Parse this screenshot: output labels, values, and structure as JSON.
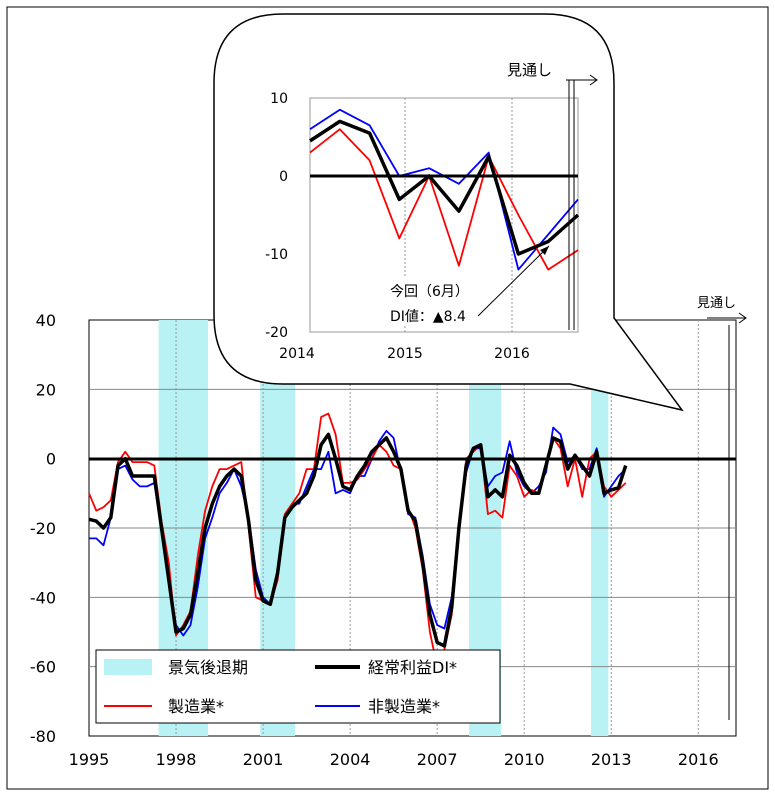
{
  "chart_data": [
    {
      "type": "line",
      "ylim": [
        -80,
        40
      ],
      "yticks": [
        40,
        20,
        0,
        -20,
        -40,
        -60,
        -80
      ],
      "xlim": [
        1995,
        2017.3
      ],
      "xticks": [
        1995,
        1998,
        2001,
        2004,
        2007,
        2010,
        2013,
        2016
      ],
      "forecast_label": "見通し",
      "recessions": [
        [
          1997.4,
          1999.1
        ],
        [
          2000.9,
          2002.1
        ],
        [
          2008.1,
          2009.2
        ],
        [
          2012.3,
          2012.9
        ]
      ],
      "legend": {
        "recession": "景気後退期",
        "total": "経常利益DI*",
        "manufacturing": "製造業*",
        "nonmanufacturing": "非製造業*"
      },
      "series": [
        {
          "key": "total",
          "name": "経常利益DI*",
          "color": "#000000",
          "points": [
            [
              1995,
              -17.5
            ],
            [
              1995.25,
              -18
            ],
            [
              1995.5,
              -20
            ],
            [
              1995.75,
              -17
            ],
            [
              1996,
              -2
            ],
            [
              1996.25,
              0
            ],
            [
              1996.5,
              -5
            ],
            [
              1996.75,
              -5
            ],
            [
              1997,
              -5
            ],
            [
              1997.25,
              -5
            ],
            [
              1997.5,
              -20
            ],
            [
              1997.75,
              -35
            ],
            [
              1998,
              -50
            ],
            [
              1998.25,
              -49
            ],
            [
              1998.5,
              -45
            ],
            [
              1998.75,
              -33
            ],
            [
              1999,
              -20
            ],
            [
              1999.25,
              -13
            ],
            [
              1999.5,
              -8
            ],
            [
              1999.75,
              -5
            ],
            [
              2000,
              -3
            ],
            [
              2000.25,
              -5
            ],
            [
              2000.5,
              -18
            ],
            [
              2000.75,
              -35
            ],
            [
              2001,
              -41
            ],
            [
              2001.25,
              -42
            ],
            [
              2001.5,
              -33
            ],
            [
              2001.75,
              -17
            ],
            [
              2002,
              -14
            ],
            [
              2002.25,
              -12
            ],
            [
              2002.5,
              -10
            ],
            [
              2002.75,
              -5
            ],
            [
              2003,
              4
            ],
            [
              2003.25,
              7
            ],
            [
              2003.5,
              0
            ],
            [
              2003.75,
              -8
            ],
            [
              2004,
              -9
            ],
            [
              2004.25,
              -5
            ],
            [
              2004.5,
              -2
            ],
            [
              2004.75,
              2
            ],
            [
              2005,
              4
            ],
            [
              2005.25,
              6
            ],
            [
              2005.5,
              2
            ],
            [
              2005.75,
              -3
            ],
            [
              2006,
              -15
            ],
            [
              2006.25,
              -18
            ],
            [
              2006.5,
              -30
            ],
            [
              2006.75,
              -45
            ],
            [
              2007,
              -53
            ],
            [
              2007.25,
              -54
            ],
            [
              2007.5,
              -43
            ],
            [
              2007.75,
              -20
            ],
            [
              2008,
              -2
            ],
            [
              2008.25,
              3
            ],
            [
              2008.5,
              4
            ],
            [
              2008.75,
              -11
            ],
            [
              2009,
              -9
            ],
            [
              2009.25,
              -11
            ],
            [
              2009.5,
              1
            ],
            [
              2009.75,
              -2
            ],
            [
              2010,
              -7
            ],
            [
              2010.25,
              -10
            ],
            [
              2010.5,
              -10
            ],
            [
              2010.75,
              -2
            ],
            [
              2011,
              6
            ],
            [
              2011.25,
              5
            ],
            [
              2011.5,
              -3
            ],
            [
              2011.75,
              1
            ],
            [
              2012,
              -2
            ],
            [
              2012.25,
              -5
            ],
            [
              2012.5,
              2
            ],
            [
              2012.75,
              -10
            ],
            [
              2013,
              -9
            ],
            [
              2013.25,
              -8.4
            ],
            [
              2013.5,
              -2
            ]
          ]
        },
        {
          "key": "manufacturing",
          "name": "製造業*",
          "color": "#ff0000",
          "points": [
            [
              1995,
              -10
            ],
            [
              1995.25,
              -15
            ],
            [
              1995.5,
              -14
            ],
            [
              1995.75,
              -12
            ],
            [
              1996,
              -1
            ],
            [
              1996.25,
              2
            ],
            [
              1996.5,
              -1
            ],
            [
              1996.75,
              -1
            ],
            [
              1997,
              -1
            ],
            [
              1997.25,
              -2
            ],
            [
              1997.5,
              -18
            ],
            [
              1997.75,
              -30
            ],
            [
              1998,
              -51
            ],
            [
              1998.25,
              -48
            ],
            [
              1998.5,
              -44
            ],
            [
              1998.75,
              -28
            ],
            [
              1999,
              -15
            ],
            [
              1999.25,
              -8
            ],
            [
              1999.5,
              -3
            ],
            [
              1999.75,
              -3
            ],
            [
              2000,
              -2
            ],
            [
              2000.25,
              -1
            ],
            [
              2000.5,
              -20
            ],
            [
              2000.75,
              -40
            ],
            [
              2001,
              -41
            ],
            [
              2001.25,
              -42
            ],
            [
              2001.5,
              -35
            ],
            [
              2001.75,
              -16
            ],
            [
              2002,
              -13
            ],
            [
              2002.25,
              -10
            ],
            [
              2002.5,
              -3
            ],
            [
              2002.75,
              -3
            ],
            [
              2003,
              12
            ],
            [
              2003.25,
              13
            ],
            [
              2003.5,
              7
            ],
            [
              2003.75,
              -7
            ],
            [
              2004,
              -7
            ],
            [
              2004.25,
              -6
            ],
            [
              2004.5,
              -3
            ],
            [
              2004.75,
              0
            ],
            [
              2005,
              4
            ],
            [
              2005.25,
              2
            ],
            [
              2005.5,
              -2
            ],
            [
              2005.75,
              -3
            ],
            [
              2006,
              -14
            ],
            [
              2006.25,
              -20
            ],
            [
              2006.5,
              -32
            ],
            [
              2006.75,
              -50
            ],
            [
              2007,
              -60
            ],
            [
              2007.25,
              -55
            ],
            [
              2007.5,
              -45
            ],
            [
              2007.75,
              -20
            ],
            [
              2008,
              0
            ],
            [
              2008.25,
              2
            ],
            [
              2008.5,
              4
            ],
            [
              2008.75,
              -16
            ],
            [
              2009,
              -15
            ],
            [
              2009.25,
              -17
            ],
            [
              2009.5,
              -2
            ],
            [
              2009.75,
              -5
            ],
            [
              2010,
              -11
            ],
            [
              2010.25,
              -9
            ],
            [
              2010.5,
              -10
            ],
            [
              2010.75,
              -1
            ],
            [
              2011,
              6
            ],
            [
              2011.25,
              3
            ],
            [
              2011.5,
              -8
            ],
            [
              2011.75,
              0
            ],
            [
              2012,
              -11
            ],
            [
              2012.25,
              0
            ],
            [
              2012.5,
              2
            ],
            [
              2012.75,
              -8
            ],
            [
              2013,
              -11
            ],
            [
              2013.25,
              -9
            ],
            [
              2013.5,
              -7
            ]
          ]
        },
        {
          "key": "nonmanufacturing",
          "name": "非製造業*",
          "color": "#0000ff",
          "points": [
            [
              1995,
              -23
            ],
            [
              1995.25,
              -23
            ],
            [
              1995.5,
              -25
            ],
            [
              1995.75,
              -17
            ],
            [
              1996,
              -3
            ],
            [
              1996.25,
              -2
            ],
            [
              1996.5,
              -6
            ],
            [
              1996.75,
              -8
            ],
            [
              1997,
              -8
            ],
            [
              1997.25,
              -7
            ],
            [
              1997.5,
              -20
            ],
            [
              1997.75,
              -35
            ],
            [
              1998,
              -48
            ],
            [
              1998.25,
              -51
            ],
            [
              1998.5,
              -48
            ],
            [
              1998.75,
              -37
            ],
            [
              1999,
              -23
            ],
            [
              1999.25,
              -17
            ],
            [
              1999.5,
              -10
            ],
            [
              1999.75,
              -7
            ],
            [
              2000,
              -3
            ],
            [
              2000.25,
              -8
            ],
            [
              2000.5,
              -17
            ],
            [
              2000.75,
              -32
            ],
            [
              2001,
              -40
            ],
            [
              2001.25,
              -42
            ],
            [
              2001.5,
              -32
            ],
            [
              2001.75,
              -17
            ],
            [
              2002,
              -13
            ],
            [
              2002.25,
              -13
            ],
            [
              2002.5,
              -8
            ],
            [
              2002.75,
              -3
            ],
            [
              2003,
              -3
            ],
            [
              2003.25,
              2
            ],
            [
              2003.5,
              -10
            ],
            [
              2003.75,
              -9
            ],
            [
              2004,
              -10
            ],
            [
              2004.25,
              -5
            ],
            [
              2004.5,
              -5
            ],
            [
              2004.75,
              0
            ],
            [
              2005,
              5
            ],
            [
              2005.25,
              8
            ],
            [
              2005.5,
              6
            ],
            [
              2005.75,
              -4
            ],
            [
              2006,
              -16
            ],
            [
              2006.25,
              -17
            ],
            [
              2006.5,
              -28
            ],
            [
              2006.75,
              -42
            ],
            [
              2007,
              -48
            ],
            [
              2007.25,
              -49
            ],
            [
              2007.5,
              -40
            ],
            [
              2007.75,
              -20
            ],
            [
              2008,
              -4
            ],
            [
              2008.25,
              3
            ],
            [
              2008.5,
              3
            ],
            [
              2008.75,
              -8
            ],
            [
              2009,
              -5
            ],
            [
              2009.25,
              -4
            ],
            [
              2009.5,
              5
            ],
            [
              2009.75,
              -4
            ],
            [
              2010,
              -8
            ],
            [
              2010.25,
              -10
            ],
            [
              2010.5,
              -8
            ],
            [
              2010.75,
              -4
            ],
            [
              2011,
              9
            ],
            [
              2011.25,
              7
            ],
            [
              2011.5,
              -1
            ],
            [
              2011.75,
              1
            ],
            [
              2012,
              -3
            ],
            [
              2012.25,
              -3
            ],
            [
              2012.5,
              3
            ],
            [
              2012.75,
              -11
            ],
            [
              2013,
              -8
            ],
            [
              2013.25,
              -5
            ],
            [
              2013.5,
              -3
            ]
          ]
        }
      ]
    },
    {
      "type": "line",
      "ylim": [
        -20,
        10
      ],
      "yticks": [
        10,
        0,
        -10,
        -20
      ],
      "xticks": [
        "2014",
        "2015",
        "2016"
      ],
      "forecast_label": "見通し",
      "annotation": {
        "line1": "今回（6月）",
        "line2": "DI値：▲8.4"
      },
      "series": [
        {
          "key": "total",
          "name": "経常利益DI*",
          "color": "#000000",
          "values": [
            4.5,
            7,
            5.5,
            -3,
            0,
            -4.5,
            2.5,
            -10,
            -8.4,
            -5
          ]
        },
        {
          "key": "manufacturing",
          "name": "製造業*",
          "color": "#ff0000",
          "values": [
            3,
            6,
            2,
            -8,
            0,
            -11.5,
            2.5,
            -5,
            -12,
            -9.5
          ]
        },
        {
          "key": "nonmanufacturing",
          "name": "非製造業*",
          "color": "#0000ff",
          "values": [
            6,
            8.5,
            6.5,
            0,
            1,
            -1,
            3,
            -12,
            -7.5,
            -3
          ]
        }
      ]
    }
  ]
}
